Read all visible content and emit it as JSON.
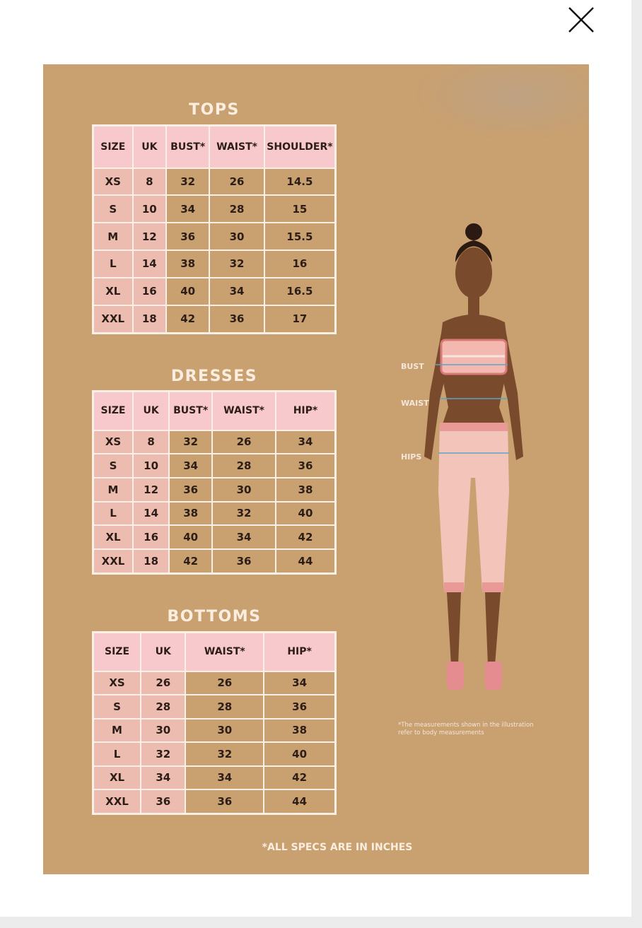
{
  "close_label": "Close",
  "tops": {
    "title": "TOPS",
    "headers": [
      "SIZE",
      "UK",
      "BUST*",
      "WAIST*",
      "SHOULDER*"
    ],
    "rows": [
      [
        "XS",
        "8",
        "32",
        "26",
        "14.5"
      ],
      [
        "S",
        "10",
        "34",
        "28",
        "15"
      ],
      [
        "M",
        "12",
        "36",
        "30",
        "15.5"
      ],
      [
        "L",
        "14",
        "38",
        "32",
        "16"
      ],
      [
        "XL",
        "16",
        "40",
        "34",
        "16.5"
      ],
      [
        "XXL",
        "18",
        "42",
        "36",
        "17"
      ]
    ]
  },
  "dresses": {
    "title": "DRESSES",
    "headers": [
      "SIZE",
      "UK",
      "BUST*",
      "WAIST*",
      "HIP*"
    ],
    "rows": [
      [
        "XS",
        "8",
        "32",
        "26",
        "34"
      ],
      [
        "S",
        "10",
        "34",
        "28",
        "36"
      ],
      [
        "M",
        "12",
        "36",
        "30",
        "38"
      ],
      [
        "L",
        "14",
        "38",
        "32",
        "40"
      ],
      [
        "XL",
        "16",
        "40",
        "34",
        "42"
      ],
      [
        "XXL",
        "18",
        "42",
        "36",
        "44"
      ]
    ]
  },
  "bottoms": {
    "title": "BOTTOMS",
    "headers": [
      "SIZE",
      "UK",
      "WAIST*",
      "HIP*"
    ],
    "rows": [
      [
        "XS",
        "26",
        "26",
        "34"
      ],
      [
        "S",
        "28",
        "28",
        "36"
      ],
      [
        "M",
        "30",
        "30",
        "38"
      ],
      [
        "L",
        "32",
        "32",
        "40"
      ],
      [
        "XL",
        "34",
        "34",
        "42"
      ],
      [
        "XXL",
        "36",
        "36",
        "44"
      ]
    ]
  },
  "illustration": {
    "labels": {
      "bust": "BUST",
      "waist": "WAIST",
      "hips": "HIPS"
    },
    "note": "*The measurements shown in the illustration refer to body measurements"
  },
  "footer": "*ALL SPECS ARE IN INCHES",
  "colors": {
    "background": "#c9a06f",
    "header_pink": "#f8c9cc",
    "cell_pink": "#ebbcaf",
    "title_cream": "#fbeee0"
  }
}
